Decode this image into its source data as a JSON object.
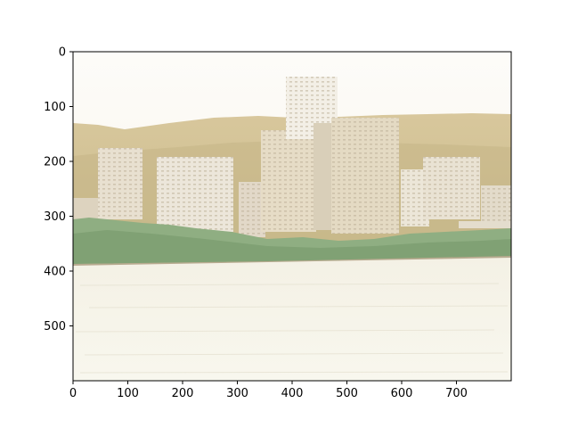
{
  "figure": {
    "image_subject": "city skyline across the water",
    "x_ticks": [
      0,
      100,
      200,
      300,
      400,
      500,
      600,
      700
    ],
    "y_ticks": [
      0,
      100,
      200,
      300,
      400,
      500
    ],
    "x_range": [
      0,
      800
    ],
    "y_range": [
      0,
      600
    ],
    "y_axis_inverted": true,
    "grid": false
  }
}
